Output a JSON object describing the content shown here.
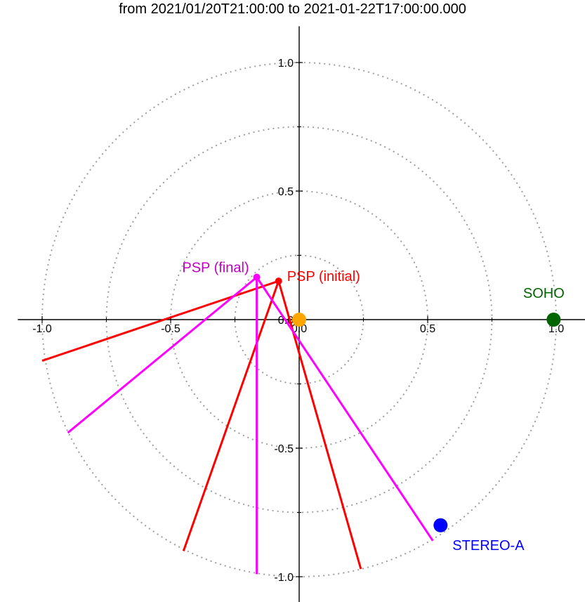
{
  "chart_data": {
    "type": "scatter",
    "title": "from 2021/01/20T21:00:00 to 2021-01-22T17:00:00.000",
    "xlabel": "",
    "ylabel": "",
    "xlim": [
      -1.1,
      1.1
    ],
    "ylim": [
      -1.1,
      1.1
    ],
    "grid": "concentric dotted circles",
    "circle_radii": [
      0.25,
      0.5,
      0.75,
      1.0
    ],
    "x_ticks": [
      {
        "value": -1.0,
        "label": "-1.0"
      },
      {
        "value": -0.5,
        "label": "-0.5"
      },
      {
        "value": 0.0,
        "label": "0.0"
      },
      {
        "value": 0.5,
        "label": "0.5"
      },
      {
        "value": 1.0,
        "label": "1.0"
      }
    ],
    "y_ticks": [
      {
        "value": 1.0,
        "label": "1.0"
      },
      {
        "value": 0.5,
        "label": "0.5"
      },
      {
        "value": 0.0,
        "label": "0.0"
      },
      {
        "value": -0.5,
        "label": "-0.5"
      },
      {
        "value": -1.0,
        "label": "-1.0"
      }
    ],
    "minor_tick_values": [
      -0.75,
      -0.25,
      0.25,
      0.75
    ],
    "bodies": [
      {
        "name": "Sun",
        "label": "",
        "x": 0.0,
        "y": 0.0,
        "color": "#ffa500",
        "label_color": "#ffa500",
        "size": "large"
      },
      {
        "name": "SOHO",
        "label": "SOHO",
        "x": 0.99,
        "y": 0.0,
        "color": "#006400",
        "label_color": "#006400",
        "size": "large"
      },
      {
        "name": "STEREO-A",
        "label": "STEREO-A",
        "x": 0.55,
        "y": -0.8,
        "color": "#0000ff",
        "label_color": "#0000ff",
        "size": "large"
      },
      {
        "name": "PSP (initial)",
        "label": "PSP (initial)",
        "x": -0.08,
        "y": 0.15,
        "color": "#ff0000",
        "label_color": "#ff0000",
        "size": "small"
      },
      {
        "name": "PSP (final)",
        "label": "PSP (final)",
        "x": -0.165,
        "y": 0.165,
        "color": "#ff00ff",
        "label_color": "#c000c0",
        "size": "small"
      }
    ],
    "fov_lines": [
      {
        "origin": "PSP (initial)",
        "color": "#ff0000",
        "end": [
          -1.0,
          -0.16
        ]
      },
      {
        "origin": "PSP (initial)",
        "color": "#ff0000",
        "end": [
          -0.45,
          -0.9
        ]
      },
      {
        "origin": "PSP (initial)",
        "color": "#ff0000",
        "end": [
          0.24,
          -0.97
        ]
      },
      {
        "origin": "PSP (final)",
        "color": "#ff00ff",
        "end": [
          -0.9,
          -0.44
        ]
      },
      {
        "origin": "PSP (final)",
        "color": "#ff00ff",
        "end": [
          -0.165,
          -0.99
        ]
      },
      {
        "origin": "PSP (final)",
        "color": "#ff00ff",
        "end": [
          0.52,
          -0.86
        ]
      }
    ]
  }
}
